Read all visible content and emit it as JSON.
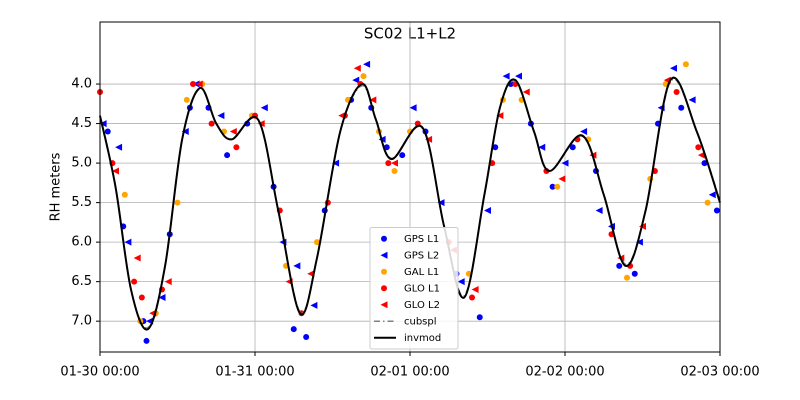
{
  "chart_data": {
    "type": "scatter",
    "title": "SC02 L1+L2",
    "ylabel": "RH meters",
    "xlim": [
      0,
      4
    ],
    "xticks": [
      {
        "value": 0,
        "label": "01-30 00:00"
      },
      {
        "value": 1,
        "label": "01-31 00:00"
      },
      {
        "value": 2,
        "label": "02-01 00:00"
      },
      {
        "value": 3,
        "label": "02-02 00:00"
      },
      {
        "value": 4,
        "label": "02-03 00:00"
      }
    ],
    "ylim": [
      7.39,
      3.215
    ],
    "yticks": [
      {
        "value": 4.0,
        "label": "4.0"
      },
      4.5,
      {
        "value": 5.0,
        "label": "5.0"
      },
      5.5,
      {
        "value": 6.0,
        "label": "6.0"
      },
      6.5,
      {
        "value": 7.0,
        "label": "7.0"
      }
    ],
    "grid": true,
    "legend": "lower center",
    "series": [
      {
        "name": "GPS L1",
        "color": "#0000ff",
        "marker": "o",
        "x": [
          0.05,
          0.15,
          0.28,
          0.3,
          0.45,
          0.58,
          0.7,
          0.82,
          0.95,
          1.12,
          1.25,
          1.33,
          1.45,
          1.62,
          1.75,
          1.85,
          1.95,
          2.1,
          2.3,
          2.45,
          2.55,
          2.65,
          2.78,
          2.92,
          3.05,
          3.2,
          3.35,
          3.45,
          3.6,
          3.75,
          3.9,
          3.98
        ],
        "values": [
          4.6,
          5.8,
          7.0,
          7.25,
          5.9,
          4.3,
          4.3,
          4.9,
          4.5,
          5.3,
          7.1,
          7.2,
          5.6,
          4.2,
          4.3,
          4.8,
          4.9,
          4.6,
          6.4,
          6.95,
          4.8,
          4.0,
          4.5,
          5.3,
          4.8,
          5.1,
          6.3,
          6.4,
          4.5,
          4.3,
          5.0,
          5.6
        ]
      },
      {
        "name": "GPS L2",
        "color": "#0000ff",
        "marker": "<",
        "x": [
          0.02,
          0.12,
          0.18,
          0.32,
          0.4,
          0.55,
          0.62,
          0.78,
          1.06,
          1.18,
          1.27,
          1.38,
          1.52,
          1.65,
          1.72,
          1.82,
          2.02,
          2.2,
          2.33,
          2.5,
          2.62,
          2.7,
          2.85,
          3.0,
          3.12,
          3.22,
          3.3,
          3.48,
          3.62,
          3.7,
          3.82,
          3.95
        ],
        "values": [
          4.5,
          4.8,
          6.0,
          7.0,
          6.7,
          4.6,
          4.0,
          4.4,
          4.3,
          6.0,
          6.3,
          6.8,
          5.0,
          3.95,
          3.75,
          4.7,
          4.3,
          5.5,
          6.5,
          5.6,
          3.9,
          3.9,
          4.8,
          5.0,
          4.6,
          5.6,
          5.8,
          6.0,
          4.3,
          3.8,
          4.2,
          5.4
        ]
      },
      {
        "name": "GAL L1",
        "color": "#ffa500",
        "marker": "o",
        "x": [
          0.16,
          0.26,
          0.36,
          0.5,
          0.56,
          0.66,
          0.8,
          0.98,
          1.2,
          1.4,
          1.6,
          1.7,
          1.8,
          1.9,
          2.0,
          2.38,
          2.6,
          2.72,
          2.95,
          3.15,
          3.4,
          3.55,
          3.65,
          3.78,
          3.92
        ],
        "values": [
          5.4,
          7.0,
          6.9,
          5.5,
          4.2,
          4.0,
          4.6,
          4.4,
          6.3,
          6.0,
          4.2,
          3.9,
          4.6,
          5.1,
          4.6,
          6.4,
          4.2,
          4.2,
          5.3,
          4.7,
          6.45,
          5.2,
          4.0,
          3.75,
          5.5
        ]
      },
      {
        "name": "GLO L1",
        "color": "#ff0000",
        "marker": "o",
        "x": [
          0.0,
          0.08,
          0.22,
          0.27,
          0.4,
          0.6,
          0.72,
          0.88,
          1.0,
          1.16,
          1.3,
          1.47,
          1.58,
          1.68,
          1.86,
          2.05,
          2.25,
          2.4,
          2.53,
          2.68,
          2.88,
          3.08,
          3.3,
          3.42,
          3.58,
          3.72,
          3.86
        ],
        "values": [
          4.1,
          5.0,
          6.5,
          6.7,
          6.6,
          4.0,
          4.5,
          4.8,
          4.4,
          5.6,
          6.9,
          5.5,
          4.4,
          4.0,
          5.0,
          4.5,
          6.0,
          6.7,
          5.0,
          4.0,
          5.1,
          4.7,
          5.9,
          6.3,
          5.1,
          4.1,
          4.8
        ]
      },
      {
        "name": "GLO L2",
        "color": "#ff0000",
        "marker": "<",
        "x": [
          0.1,
          0.24,
          0.34,
          0.44,
          0.64,
          0.86,
          1.04,
          1.22,
          1.36,
          1.56,
          1.66,
          1.76,
          1.9,
          2.12,
          2.28,
          2.42,
          2.58,
          2.75,
          2.98,
          3.18,
          3.36,
          3.5,
          3.66,
          3.88
        ],
        "values": [
          5.1,
          6.2,
          6.9,
          6.5,
          4.0,
          4.6,
          4.5,
          6.5,
          6.4,
          4.4,
          3.8,
          4.2,
          5.0,
          4.7,
          6.1,
          6.6,
          4.4,
          4.1,
          5.2,
          4.9,
          6.2,
          5.8,
          3.95,
          4.9
        ]
      },
      {
        "name": "cubspl",
        "color": "#808080",
        "marker": "-.",
        "x": [
          0,
          0.1,
          0.2,
          0.31,
          0.42,
          0.53,
          0.645,
          0.75,
          0.85,
          1.02,
          1.15,
          1.29,
          1.4,
          1.55,
          1.69,
          1.78,
          1.88,
          2.08,
          2.22,
          2.35,
          2.48,
          2.58,
          2.68,
          2.8,
          2.9,
          3.11,
          3.25,
          3.39,
          3.52,
          3.68,
          3.85,
          4.0
        ],
        "values": [
          4.42,
          5.3,
          6.6,
          7.08,
          6.3,
          4.7,
          4.06,
          4.5,
          4.7,
          4.46,
          5.6,
          6.88,
          6.2,
          4.6,
          4.02,
          4.45,
          4.94,
          4.56,
          5.8,
          6.68,
          5.4,
          4.3,
          3.97,
          4.6,
          5.1,
          4.66,
          5.4,
          6.28,
          5.6,
          3.97,
          4.6,
          5.48
        ]
      },
      {
        "name": "invmod",
        "color": "#000000",
        "marker": "-",
        "x": [
          0,
          0.1,
          0.2,
          0.31,
          0.42,
          0.53,
          0.645,
          0.75,
          0.85,
          1.02,
          1.15,
          1.29,
          1.4,
          1.55,
          1.69,
          1.78,
          1.88,
          2.08,
          2.22,
          2.35,
          2.48,
          2.58,
          2.68,
          2.8,
          2.9,
          3.11,
          3.25,
          3.39,
          3.52,
          3.68,
          3.85,
          4.0
        ],
        "values": [
          4.4,
          5.3,
          6.6,
          7.1,
          6.3,
          4.7,
          4.05,
          4.5,
          4.7,
          4.45,
          5.6,
          6.9,
          6.2,
          4.6,
          4.0,
          4.45,
          4.95,
          4.55,
          5.8,
          6.7,
          5.4,
          4.3,
          3.95,
          4.6,
          5.1,
          4.65,
          5.4,
          6.3,
          5.6,
          3.95,
          4.6,
          5.5
        ]
      }
    ]
  }
}
